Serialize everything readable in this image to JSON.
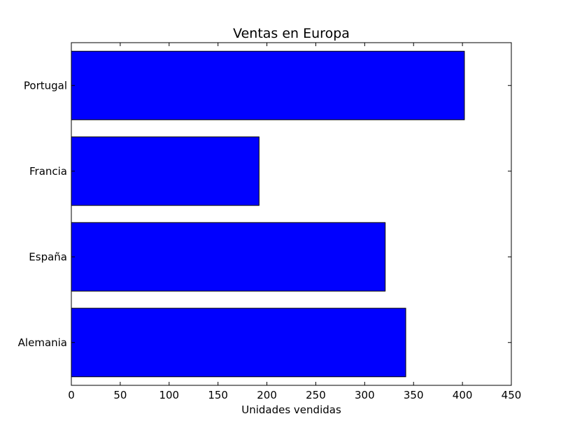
{
  "chart_data": {
    "type": "bar",
    "orientation": "horizontal",
    "title": "Ventas en Europa",
    "xlabel": "Unidades vendidas",
    "ylabel": "",
    "categories": [
      "Alemania",
      "España",
      "Francia",
      "Portugal"
    ],
    "values": [
      342,
      321,
      192,
      402
    ],
    "xlim": [
      0,
      450
    ],
    "xticks": [
      0,
      50,
      100,
      150,
      200,
      250,
      300,
      350,
      400,
      450
    ],
    "grid": false,
    "legend": "none",
    "colors": {
      "bar_fill": "#0000ff",
      "bar_edge": "#000000",
      "axes": "#000000",
      "background": "#ffffff"
    }
  }
}
